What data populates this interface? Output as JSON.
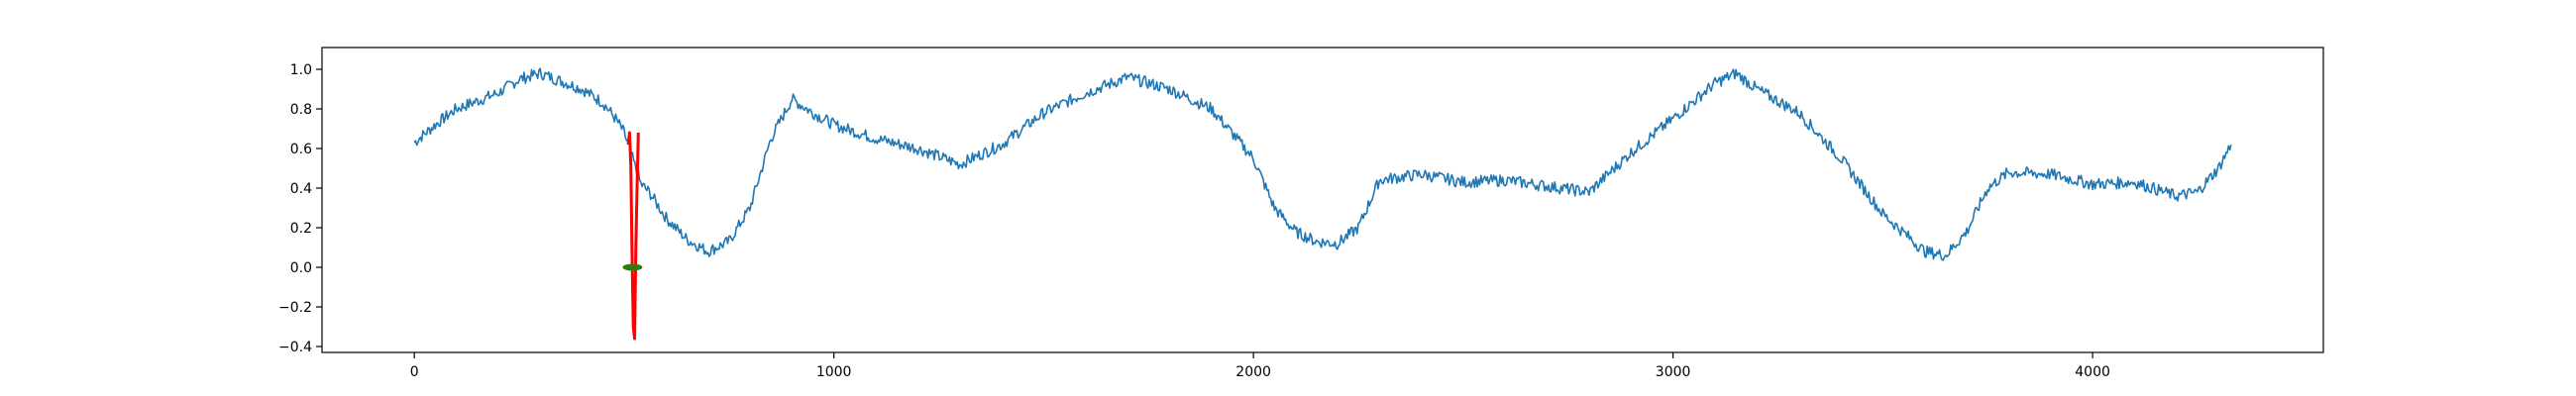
{
  "chart_data": {
    "type": "line",
    "title": "",
    "xlabel": "",
    "ylabel": "",
    "xlim": [
      -220,
      4550
    ],
    "ylim": [
      -0.43,
      1.11
    ],
    "x_ticks": [
      0,
      1000,
      2000,
      3000,
      4000
    ],
    "x_tick_labels": [
      "0",
      "1000",
      "2000",
      "3000",
      "4000"
    ],
    "y_ticks": [
      -0.4,
      -0.2,
      0.0,
      0.2,
      0.4,
      0.6,
      0.8,
      1.0
    ],
    "y_tick_labels": [
      "−0.4",
      "−0.2",
      "0.0",
      "0.2",
      "0.4",
      "0.6",
      "0.8",
      "1.0"
    ],
    "grid": false,
    "colors": {
      "series": "#1f77b4",
      "highlight": "#ff0000",
      "marker": "#2e7d0f",
      "axes": "#000000"
    },
    "series": [
      {
        "style": "line",
        "color": "#1f77b4",
        "x": [
          0,
          50,
          100,
          150,
          200,
          250,
          300,
          350,
          400,
          450,
          480,
          500,
          520,
          540,
          560,
          600,
          650,
          700,
          750,
          800,
          850,
          900,
          950,
          1000,
          1100,
          1200,
          1300,
          1400,
          1500,
          1600,
          1700,
          1800,
          1900,
          2000,
          2050,
          2100,
          2150,
          2200,
          2250,
          2300,
          2400,
          2500,
          2600,
          2700,
          2800,
          2900,
          3000,
          3100,
          3150,
          3200,
          3300,
          3400,
          3500,
          3600,
          3650,
          3700,
          3750,
          3800,
          3900,
          4000,
          4100,
          4200,
          4250,
          4300,
          4330
        ],
        "y": [
          0.63,
          0.72,
          0.8,
          0.84,
          0.88,
          0.95,
          0.98,
          0.94,
          0.9,
          0.83,
          0.75,
          0.68,
          0.55,
          0.42,
          0.38,
          0.25,
          0.14,
          0.08,
          0.13,
          0.3,
          0.65,
          0.85,
          0.78,
          0.72,
          0.65,
          0.6,
          0.52,
          0.62,
          0.78,
          0.88,
          0.96,
          0.9,
          0.8,
          0.55,
          0.3,
          0.18,
          0.13,
          0.12,
          0.2,
          0.44,
          0.47,
          0.43,
          0.44,
          0.41,
          0.38,
          0.58,
          0.75,
          0.93,
          0.98,
          0.9,
          0.78,
          0.55,
          0.27,
          0.08,
          0.06,
          0.18,
          0.4,
          0.48,
          0.47,
          0.42,
          0.43,
          0.36,
          0.38,
          0.5,
          0.62
        ]
      },
      {
        "style": "line",
        "color": "#ff0000",
        "x": [
          510,
          513,
          516,
          519,
          522,
          525,
          528,
          531,
          534
        ],
        "y": [
          0.62,
          0.68,
          0.52,
          0.05,
          -0.3,
          -0.36,
          0.1,
          0.4,
          0.68
        ]
      },
      {
        "style": "marker",
        "color": "#2e7d0f",
        "x": [
          520
        ],
        "y": [
          0.0
        ]
      }
    ]
  }
}
